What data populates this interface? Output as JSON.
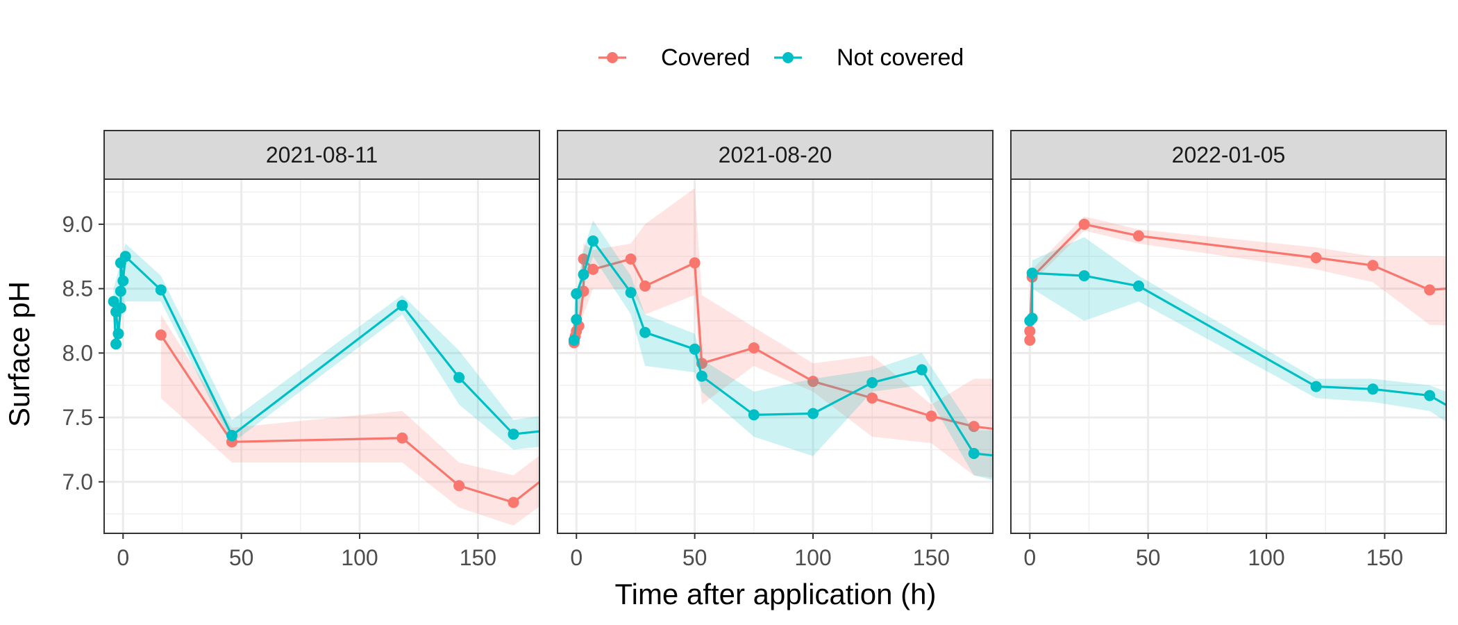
{
  "chart_data": {
    "type": "line",
    "xlabel": "Time after application (h)",
    "ylabel": "Surface pH",
    "xlim": [
      -8,
      176
    ],
    "ylim": [
      6.6,
      9.35
    ],
    "x_ticks": [
      0,
      50,
      100,
      150
    ],
    "y_ticks": [
      7.0,
      7.5,
      8.0,
      8.5,
      9.0
    ],
    "x_tick_labels": [
      "0",
      "50",
      "100",
      "150"
    ],
    "y_tick_labels": [
      "7.0",
      "7.5",
      "8.0",
      "8.5",
      "9.0"
    ],
    "grid": true,
    "legend": {
      "position": "top",
      "entries": [
        {
          "name": "Covered",
          "color": "#F8766D"
        },
        {
          "name": "Not covered",
          "color": "#00BFC4"
        }
      ]
    },
    "panels": [
      {
        "title": "2021-08-11",
        "series": [
          {
            "name": "Covered",
            "color": "#F8766D",
            "points": [
              [
                16,
                8.14
              ],
              [
                46,
                7.31
              ],
              [
                118,
                7.34
              ],
              [
                142,
                6.97
              ],
              [
                165,
                6.84
              ],
              [
                190,
                7.2
              ]
            ],
            "ribbon": [
              [
                16,
                7.65,
                8.3
              ],
              [
                46,
                7.15,
                7.42
              ],
              [
                118,
                7.15,
                7.55
              ],
              [
                142,
                6.8,
                7.15
              ],
              [
                165,
                6.66,
                7.05
              ],
              [
                190,
                7.0,
                7.4
              ]
            ]
          },
          {
            "name": "Not covered",
            "color": "#00BFC4",
            "points": [
              [
                -3,
                8.07
              ],
              [
                -4,
                8.4
              ],
              [
                -3,
                8.32
              ],
              [
                -2,
                8.15
              ],
              [
                -1,
                8.35
              ],
              [
                -1,
                8.48
              ],
              [
                -1,
                8.7
              ],
              [
                0,
                8.56
              ],
              [
                1,
                8.75
              ],
              [
                16,
                8.49
              ],
              [
                46,
                7.36
              ],
              [
                118,
                8.37
              ],
              [
                142,
                7.81
              ],
              [
                165,
                7.37
              ],
              [
                190,
                7.42
              ]
            ],
            "ribbon": [
              [
                -4,
                8.02,
                8.5
              ],
              [
                1,
                8.4,
                8.85
              ],
              [
                16,
                8.4,
                8.6
              ],
              [
                46,
                7.3,
                7.48
              ],
              [
                118,
                8.3,
                8.45
              ],
              [
                142,
                7.6,
                8.02
              ],
              [
                165,
                7.25,
                7.48
              ],
              [
                190,
                7.3,
                7.55
              ]
            ]
          }
        ]
      },
      {
        "title": "2021-08-20",
        "series": [
          {
            "name": "Covered",
            "color": "#F8766D",
            "points": [
              [
                -1,
                8.08
              ],
              [
                -0.5,
                8.13
              ],
              [
                0,
                8.17
              ],
              [
                1,
                8.21
              ],
              [
                3,
                8.48
              ],
              [
                3,
                8.73
              ],
              [
                7,
                8.65
              ],
              [
                23,
                8.73
              ],
              [
                29,
                8.52
              ],
              [
                50,
                8.7
              ],
              [
                53,
                7.92
              ],
              [
                75,
                8.04
              ],
              [
                100,
                7.78
              ],
              [
                125,
                7.65
              ],
              [
                150,
                7.51
              ],
              [
                168,
                7.43
              ],
              [
                190,
                7.38
              ]
            ],
            "ribbon": [
              [
                -1,
                8.0,
                8.2
              ],
              [
                3,
                8.3,
                8.85
              ],
              [
                7,
                8.5,
                8.8
              ],
              [
                23,
                8.5,
                8.85
              ],
              [
                29,
                8.3,
                9.0
              ],
              [
                50,
                8.45,
                9.28
              ],
              [
                53,
                7.6,
                8.45
              ],
              [
                75,
                7.9,
                8.2
              ],
              [
                100,
                7.7,
                7.92
              ],
              [
                125,
                7.35,
                7.98
              ],
              [
                150,
                7.3,
                7.6
              ],
              [
                168,
                7.05,
                7.8
              ],
              [
                190,
                7.0,
                7.8
              ]
            ]
          },
          {
            "name": "Not covered",
            "color": "#00BFC4",
            "points": [
              [
                -1,
                8.1
              ],
              [
                0,
                8.26
              ],
              [
                0,
                8.46
              ],
              [
                3,
                8.61
              ],
              [
                7,
                8.87
              ],
              [
                23,
                8.47
              ],
              [
                29,
                8.16
              ],
              [
                50,
                8.03
              ],
              [
                53,
                7.82
              ],
              [
                75,
                7.52
              ],
              [
                100,
                7.53
              ],
              [
                125,
                7.77
              ],
              [
                146,
                7.87
              ],
              [
                168,
                7.22
              ],
              [
                190,
                7.18
              ]
            ],
            "ribbon": [
              [
                -1,
                8.05,
                8.35
              ],
              [
                3,
                8.5,
                8.8
              ],
              [
                7,
                8.75,
                9.03
              ],
              [
                23,
                8.3,
                8.6
              ],
              [
                29,
                7.9,
                8.3
              ],
              [
                50,
                7.85,
                8.15
              ],
              [
                53,
                7.7,
                7.95
              ],
              [
                75,
                7.35,
                7.7
              ],
              [
                100,
                7.2,
                7.8
              ],
              [
                125,
                7.7,
                7.87
              ],
              [
                146,
                7.75,
                8.0
              ],
              [
                168,
                7.05,
                7.4
              ],
              [
                190,
                6.95,
                7.4
              ]
            ]
          }
        ]
      },
      {
        "title": "2022-01-05",
        "series": [
          {
            "name": "Covered",
            "color": "#F8766D",
            "points": [
              [
                0,
                8.1
              ],
              [
                0,
                8.17
              ],
              [
                1,
                8.59
              ],
              [
                23,
                9.0
              ],
              [
                46,
                8.91
              ],
              [
                121,
                8.74
              ],
              [
                145,
                8.68
              ],
              [
                169,
                8.49
              ],
              [
                190,
                8.52
              ]
            ],
            "ribbon": [
              [
                0,
                8.05,
                8.25
              ],
              [
                1,
                8.55,
                8.65
              ],
              [
                23,
                8.95,
                9.06
              ],
              [
                46,
                8.85,
                8.96
              ],
              [
                121,
                8.65,
                8.82
              ],
              [
                145,
                8.55,
                8.75
              ],
              [
                169,
                8.22,
                8.75
              ],
              [
                190,
                8.2,
                8.75
              ]
            ]
          },
          {
            "name": "Not covered",
            "color": "#00BFC4",
            "points": [
              [
                0,
                8.25
              ],
              [
                1,
                8.27
              ],
              [
                1,
                8.62
              ],
              [
                23,
                8.6
              ],
              [
                46,
                8.52
              ],
              [
                121,
                7.74
              ],
              [
                145,
                7.72
              ],
              [
                169,
                7.67
              ],
              [
                190,
                7.45
              ]
            ],
            "ribbon": [
              [
                0,
                8.2,
                8.33
              ],
              [
                1,
                8.5,
                8.72
              ],
              [
                23,
                8.25,
                8.9
              ],
              [
                46,
                8.4,
                8.6
              ],
              [
                121,
                7.65,
                7.8
              ],
              [
                145,
                7.62,
                7.8
              ],
              [
                169,
                7.55,
                7.75
              ],
              [
                190,
                7.3,
                7.6
              ]
            ]
          }
        ]
      }
    ]
  }
}
